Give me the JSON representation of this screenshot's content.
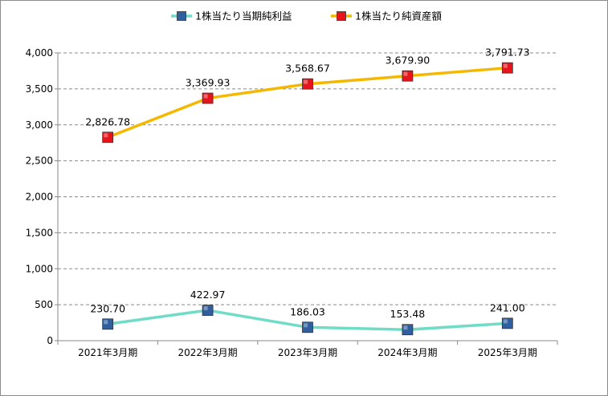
{
  "chart_data": {
    "type": "line",
    "categories": [
      "2021年3月期",
      "2022年3月期",
      "2023年3月期",
      "2024年3月期",
      "2025年3月期"
    ],
    "series": [
      {
        "name": "1株当たり当期純利益",
        "values": [
          230.7,
          422.97,
          186.03,
          153.48,
          241.0
        ],
        "labels": [
          "230.70",
          "422.97",
          "186.03",
          "153.48",
          "241.00"
        ],
        "line_color": "#6fdcc8",
        "marker_color": "#2f5f9e",
        "marker": "square"
      },
      {
        "name": "1株当たり純資産額",
        "values": [
          2826.78,
          3369.93,
          3568.67,
          3679.9,
          3791.73
        ],
        "labels": [
          "2,826.78",
          "3,369.93",
          "3,568.67",
          "3,679.90",
          "3,791.73"
        ],
        "line_color": "#f5b800",
        "marker_color": "#e8141b",
        "marker": "square"
      }
    ],
    "ylim": [
      0,
      4000
    ],
    "yticks": [
      0,
      500,
      1000,
      1500,
      2000,
      2500,
      3000,
      3500,
      4000
    ],
    "ytick_labels": [
      "0",
      "500",
      "1,000",
      "1,500",
      "2,000",
      "2,500",
      "3,000",
      "3,500",
      "4,000"
    ],
    "grid": true,
    "legend_position": "top-center",
    "title": "",
    "xlabel": "",
    "ylabel": ""
  }
}
